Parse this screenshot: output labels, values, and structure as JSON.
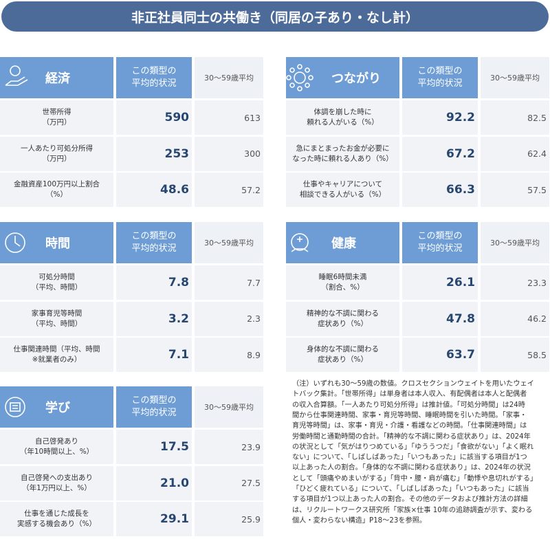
{
  "title": "非正社員同士の共働き（同居の子あり・なし計）",
  "panels": [
    {
      "title": "経済",
      "col1": "この類型の\n平均的状況",
      "col2": "30〜59歳平均",
      "rows": [
        {
          "label": "世帯所得\n（万円）",
          "value": "590",
          "average": "613"
        },
        {
          "label": "一人あたり可処分所得\n（万円）",
          "value": "253",
          "average": "300"
        },
        {
          "label": "金融資産100万円以上割合\n（%）",
          "value": "48.6",
          "average": "57.2"
        }
      ]
    },
    {
      "title": "つながり",
      "col1": "この類型の\n平均的状況",
      "col2": "30〜59歳平均",
      "rows": [
        {
          "label": "体調を崩した時に\n頼れる人がいる（%）",
          "value": "92.2",
          "average": "82.5"
        },
        {
          "label": "急にまとまったお金が必要に\nなった時に頼れる人あり（%）",
          "value": "67.2",
          "average": "62.4"
        },
        {
          "label": "仕事やキャリアについて\n相談できる人がいる（%）",
          "value": "66.3",
          "average": "57.5"
        }
      ]
    },
    {
      "title": "時間",
      "col1": "この類型の\n平均的状況",
      "col2": "30〜59歳平均",
      "rows": [
        {
          "label": "可処分時間\n（平均、時間）",
          "value": "7.8",
          "average": "7.7"
        },
        {
          "label": "家事育児等時間\n（平均、時間）",
          "value": "3.2",
          "average": "2.3"
        },
        {
          "label": "仕事関連時間（平均、時間\n※就業者のみ）",
          "value": "7.1",
          "average": "8.9"
        }
      ]
    },
    {
      "title": "健康",
      "col1": "この類型の\n平均的状況",
      "col2": "30〜59歳平均",
      "rows": [
        {
          "label": "睡眠6時間未満\n（割合、%）",
          "value": "26.1",
          "average": "23.3"
        },
        {
          "label": "精神的な不調に関わる\n症状あり（%）",
          "value": "47.8",
          "average": "46.2"
        },
        {
          "label": "身体的な不調に関わる\n症状あり（%）",
          "value": "63.7",
          "average": "58.5"
        }
      ]
    },
    {
      "title": "学び",
      "col1": "この類型の\n平均的状況",
      "col2": "30〜59歳平均",
      "rows": [
        {
          "label": "自己啓発あり\n（年10時間以上、%）",
          "value": "17.5",
          "average": "23.9"
        },
        {
          "label": "自己啓発への支出あり\n（年1万円以上、%）",
          "value": "21.0",
          "average": "27.5"
        },
        {
          "label": "仕事を通じた成長を\n実感する機会あり（%）",
          "value": "29.1",
          "average": "25.9"
        }
      ]
    }
  ],
  "note": [
    "（注）いずれも30～59歳の数値。クロスセクションウェイトを用いたウェイ",
    "トバック集計。「世帯所得」は単身者は本人収入、有配偶者は本人と配偶者",
    "の収入合算額。「一人あたり可処分所得」は推計値。「可処分時間」は24時",
    "間から仕事関連時間、家事・育児等時間、睡眠時間を引いた時間。「家事・",
    "育児等時間」は、家事・育児・介護・看護などの時間。「仕事関連時間」は",
    "労働時間と通勤時間の合計。「精神的な不調に関わる症状あり」は、2024年",
    "の状況として「気がはりつめている」「ゆううつだ」「食欲がない」「よく眠れ",
    "ない」について、「しばしばあった」「いつもあった」に該当する項目が1つ",
    "以上あった人の割合。「身体的な不調に関わる症状あり」は、2024年の状況",
    "として「頭痛やめまいがする」「背中・腰・肩が痛む」「動悸や息切れがする」",
    "「ひどく疲れている」について、「しばしばあった」「いつもあった」に該当",
    "する項目が1つ以上あった人の割合。その他のデータおよび推計方法の詳細",
    "は、リクルートワークス研究所「家族×仕事 10年の追跡調査が示す、変わる",
    "個人・変わらない構造」P18～23を参照。"
  ]
}
